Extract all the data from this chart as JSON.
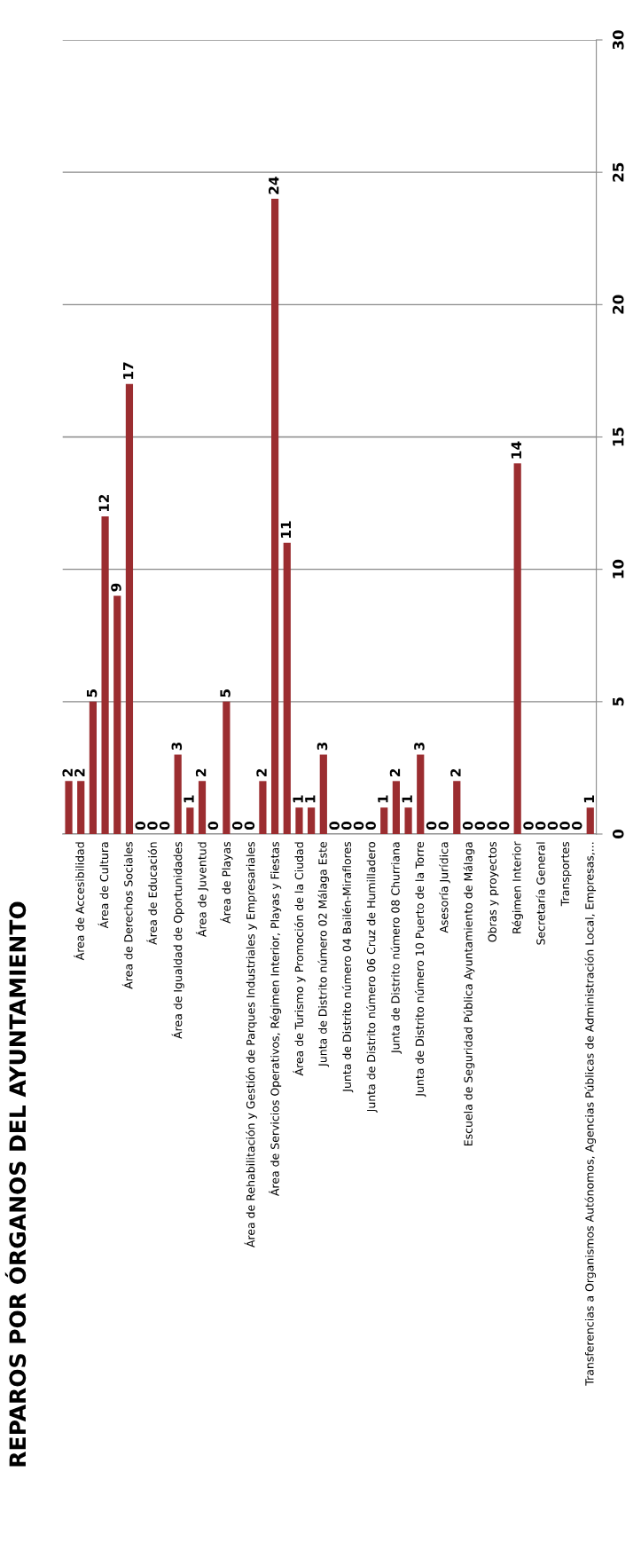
{
  "chart_data": {
    "type": "bar",
    "title": "REPAROS POR ÓRGANOS DEL AYUNTAMIENTO",
    "categories": [
      null,
      "Área de Accesibilidad",
      null,
      "Área de Cultura",
      null,
      "Área de Derechos Sociales",
      null,
      "Área de Educación",
      null,
      "Área de Igualdad de Oportunidades",
      null,
      "Área de Juventud",
      null,
      "Área de Playas",
      null,
      "Área de Rehabilitación y Gestión de Parques Industriales y Empresariales",
      null,
      "Área de Servicios Operativos, Régimen Interior, Playas y Fiestas",
      null,
      "Área de Turismo y Promoción de la Ciudad",
      null,
      "Junta de Distrito número 02 Málaga Este",
      null,
      "Junta de Distrito número 04 Bailén-Miraflores",
      null,
      "Junta de Distrito número 06 Cruz de Humilladero",
      null,
      "Junta de Distrito número 08 Churriana",
      null,
      "Junta de Distrito número 10 Puerto de la Torre",
      null,
      "Asesoría Jurídica",
      null,
      "Escuela de Seguridad Pública Ayuntamiento de Málaga",
      null,
      "Obras y proyectos",
      null,
      "Régimen Interior",
      null,
      "Secretaría General",
      null,
      "Transportes",
      null,
      "Transferencias a Organismos Autónomos, Agencias Públicas de Administración Local, Empresas,..."
    ],
    "values": [
      2,
      2,
      5,
      12,
      9,
      17,
      0,
      0,
      0,
      3,
      1,
      2,
      0,
      5,
      0,
      0,
      2,
      24,
      11,
      1,
      1,
      3,
      0,
      0,
      0,
      0,
      1,
      2,
      1,
      3,
      0,
      0,
      2,
      0,
      0,
      0,
      0,
      14,
      0,
      0,
      0,
      0,
      0,
      1
    ],
    "color": "#9b2d30",
    "ylim": [
      0,
      30
    ],
    "yticks": [
      0,
      5,
      10,
      15,
      20,
      25,
      30
    ],
    "grid": "y",
    "data_labels": true
  }
}
